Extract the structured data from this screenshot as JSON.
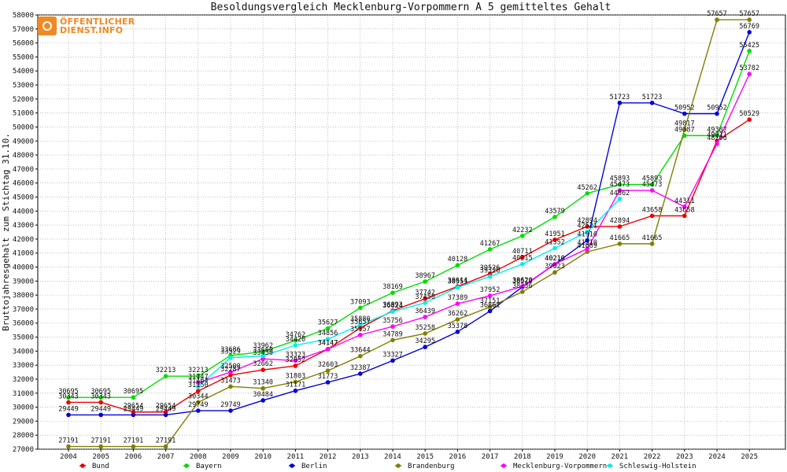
{
  "logo": {
    "line1": "ÖFFENTLICHER",
    "line2": "DIENST.INFO"
  },
  "chart_data": {
    "type": "line",
    "title": "Besoldungsvergleich Mecklenburg-Vorpommern A 5 gemitteltes Gehalt",
    "xlabel": "",
    "ylabel": "Bruttojahresgehalt zum Stichtag 31.10.",
    "ylim": [
      27000,
      58000
    ],
    "ytick_step": 1000,
    "grid": true,
    "legend_position": "bottom",
    "categories": [
      "2004",
      "2005",
      "2006",
      "2007",
      "2008",
      "2009",
      "2010",
      "2011",
      "2012",
      "2013",
      "2014",
      "2015",
      "2016",
      "2017",
      "2018",
      "2019",
      "2020",
      "2021",
      "2022",
      "2023",
      "2024",
      "2025"
    ],
    "series": [
      {
        "name": "Bund",
        "color": "#ee0000",
        "values": [
          30343,
          30343,
          29654,
          29654,
          31150,
          32287,
          32662,
          32952,
          34147,
          35657,
          36893,
          37742,
          38614,
          39526,
          40711,
          41951,
          42894,
          42894,
          43658,
          43658,
          49011,
          50529
        ],
        "labels": [
          30343,
          30343,
          29654,
          29654,
          31150,
          32287,
          32662,
          32952,
          34147,
          35657,
          36893,
          37742,
          38614,
          39526,
          40711,
          41951,
          42894,
          42894,
          43658,
          43658,
          49011,
          50529
        ]
      },
      {
        "name": "Bayern",
        "color": "#00dd00",
        "values": [
          30695,
          30695,
          30695,
          32213,
          32213,
          33686,
          33962,
          34762,
          35627,
          37093,
          38169,
          38967,
          40128,
          41267,
          42232,
          43579,
          45262,
          45893,
          45893,
          49387,
          49387,
          55425
        ],
        "labels": [
          30695,
          30695,
          30695,
          32213,
          32213,
          33686,
          33962,
          34762,
          35627,
          37093,
          38169,
          38967,
          40128,
          41267,
          42232,
          43579,
          45262,
          45893,
          45893,
          49387,
          49387,
          55425
        ]
      },
      {
        "name": "Berlin",
        "color": "#0000dd",
        "values": [
          29449,
          29449,
          29449,
          29449,
          29749,
          29749,
          30484,
          31171,
          31773,
          32387,
          33327,
          34295,
          35378,
          36861,
          38579,
          40210,
          41910,
          51723,
          51723,
          50952,
          50952,
          56769
        ],
        "labels": [
          29449,
          29449,
          29449,
          29449,
          29749,
          29749,
          30484,
          31171,
          31773,
          32387,
          33327,
          34295,
          35378,
          36861,
          38579,
          40210,
          41910,
          51723,
          51723,
          50952,
          50952,
          56769
        ]
      },
      {
        "name": "Brandenburg",
        "color": "#808000",
        "values": [
          27191,
          27191,
          27191,
          27191,
          30344,
          31473,
          31340,
          31803,
          32603,
          33644,
          34789,
          35258,
          36262,
          37151,
          38236,
          39623,
          41089,
          41665,
          41665,
          49817,
          57657,
          57657
        ],
        "labels": [
          27191,
          27191,
          27191,
          27191,
          30344,
          31473,
          31340,
          31803,
          32603,
          33644,
          34789,
          35258,
          36262,
          37151,
          38236,
          39623,
          41089,
          41665,
          41665,
          49817,
          57657,
          57657
        ]
      },
      {
        "name": "Mecklenburg-Vorpommern",
        "color": "#ff00ff",
        "values": [
          null,
          null,
          null,
          null,
          31747,
          32500,
          33450,
          33323,
          34147,
          35157,
          35756,
          36439,
          37389,
          37952,
          38620,
          40210,
          41310,
          45473,
          45473,
          44311,
          48796,
          53782
        ],
        "labels": [
          null,
          null,
          null,
          null,
          31747,
          32500,
          33450,
          33323,
          34147,
          35157,
          35756,
          36439,
          37389,
          37952,
          38620,
          40210,
          41310,
          45473,
          45473,
          44311,
          48796,
          53782
        ]
      },
      {
        "name": "Schleswig-Holstein",
        "color": "#00eeee",
        "values": [
          null,
          null,
          null,
          null,
          31464,
          33529,
          33660,
          34420,
          34856,
          35880,
          36824,
          37450,
          38551,
          39320,
          40215,
          41352,
          42521,
          44862,
          null,
          null,
          null,
          null
        ],
        "labels": [
          null,
          null,
          null,
          null,
          31464,
          33529,
          33660,
          34420,
          34856,
          35880,
          36824,
          37450,
          38551,
          39320,
          40215,
          41352,
          42521,
          44862,
          null,
          null,
          null,
          null
        ]
      }
    ]
  }
}
